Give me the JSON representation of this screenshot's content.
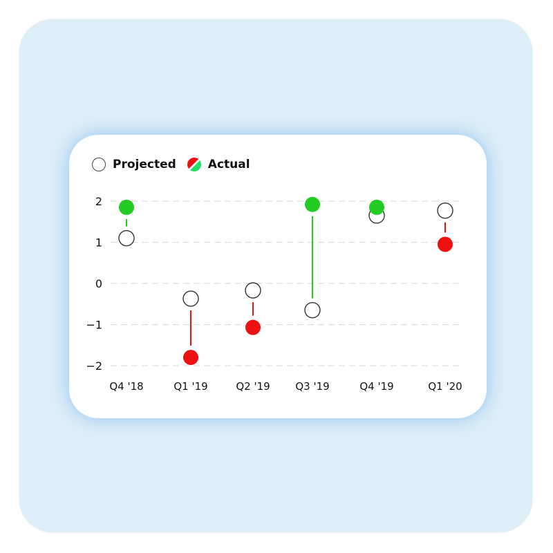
{
  "legend": {
    "projected_label": "Projected",
    "actual_label": "Actual"
  },
  "colors": {
    "positive": "#22cc22",
    "negative": "#ee1111",
    "grid": "#dddddd",
    "projected_stroke": "#333333"
  },
  "chart_data": {
    "type": "scatter",
    "categories": [
      "Q4 '18",
      "Q1 '19",
      "Q2 '19",
      "Q3 '19",
      "Q4 '19",
      "Q1 '20"
    ],
    "y_ticks": [
      2,
      1,
      0,
      -1,
      -2
    ],
    "ylim": [
      -2,
      2
    ],
    "grid": true,
    "legend_position": "top-left",
    "series": [
      {
        "name": "Projected",
        "values": [
          1.1,
          -0.37,
          -0.17,
          -0.65,
          1.65,
          1.77
        ]
      },
      {
        "name": "Actual",
        "values": [
          1.85,
          -1.8,
          -1.07,
          1.92,
          1.85,
          0.95
        ]
      }
    ]
  }
}
